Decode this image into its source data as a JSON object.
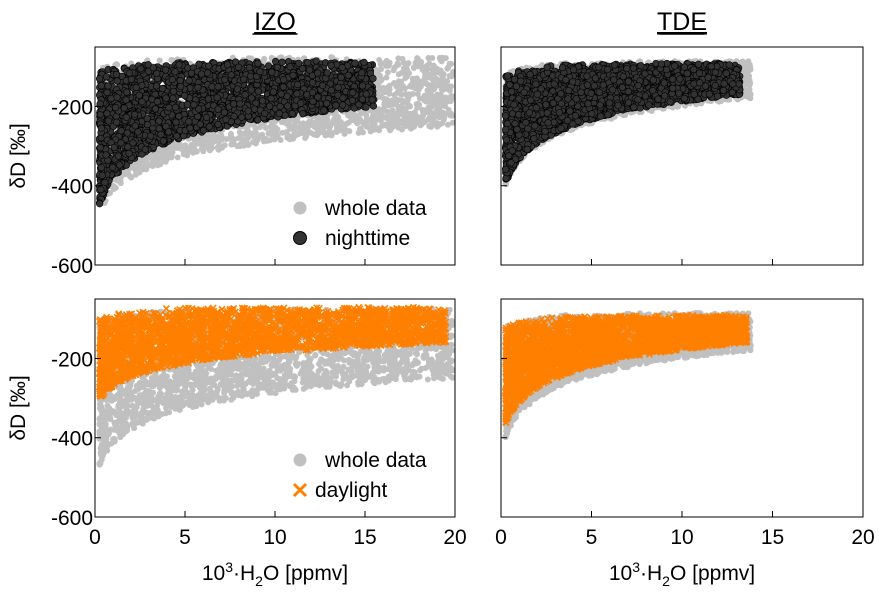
{
  "chart_data": [
    {
      "type": "scatter",
      "panel": "top-left",
      "column_title": "IZO",
      "ylabel": "δD [‰]",
      "xlabel": "",
      "xlim": [
        0,
        20
      ],
      "ylim": [
        -600,
        -50
      ],
      "xticks": [
        0,
        5,
        10,
        15,
        20
      ],
      "yticks": [
        -600,
        -400,
        -200
      ],
      "show_x_tick_labels": false,
      "show_y_tick_labels": true,
      "grid": false,
      "legend_position": "bottom-right",
      "series": [
        {
          "name": "whole data",
          "color": "#c0c0c0",
          "marker": "circle",
          "xmax": 19.9,
          "upper": -85,
          "lower_min": -535,
          "lower_knee": -290
        },
        {
          "name": "nighttime",
          "color": "#333333",
          "marker": "circle-dark",
          "xmax": 15.5,
          "upper": -95,
          "lower_min": -525,
          "lower_knee": -240
        }
      ]
    },
    {
      "type": "scatter",
      "panel": "top-right",
      "column_title": "TDE",
      "ylabel": "",
      "xlabel": "",
      "xlim": [
        0,
        20
      ],
      "ylim": [
        -600,
        -50
      ],
      "xticks": [
        0,
        5,
        10,
        15,
        20
      ],
      "yticks": [
        -600,
        -400,
        -200
      ],
      "show_x_tick_labels": false,
      "show_y_tick_labels": false,
      "grid": false,
      "legend_position": "",
      "series": [
        {
          "name": "",
          "color": "#c0c0c0",
          "marker": "circle",
          "xmax": 13.8,
          "upper": -95,
          "lower_min": -470,
          "lower_knee": -220
        },
        {
          "name": "",
          "color": "#333333",
          "marker": "circle-dark",
          "xmax": 13.2,
          "upper": -100,
          "lower_min": -470,
          "lower_knee": -210
        }
      ]
    },
    {
      "type": "scatter",
      "panel": "bottom-left",
      "column_title": "",
      "ylabel": "δD [‰]",
      "xlabel": "10³·H₂O [ppmv]",
      "xlim": [
        0,
        20
      ],
      "ylim": [
        -600,
        -50
      ],
      "xticks": [
        0,
        5,
        10,
        15,
        20
      ],
      "yticks": [
        -600,
        -400,
        -200
      ],
      "show_x_tick_labels": true,
      "show_y_tick_labels": true,
      "grid": false,
      "legend_position": "bottom-right",
      "series": [
        {
          "name": "whole data",
          "color": "#c0c0c0",
          "marker": "circle",
          "xmax": 19.9,
          "upper": -85,
          "lower_min": -535,
          "lower_knee": -290
        },
        {
          "name": "daylight",
          "color": "#ff8000",
          "marker": "x",
          "xmax": 19.5,
          "upper": -80,
          "lower_min": -345,
          "lower_knee": -200
        }
      ]
    },
    {
      "type": "scatter",
      "panel": "bottom-right",
      "column_title": "",
      "ylabel": "",
      "xlabel": "10³·H₂O [ppmv]",
      "xlim": [
        0,
        20
      ],
      "ylim": [
        -600,
        -50
      ],
      "xticks": [
        0,
        5,
        10,
        15,
        20
      ],
      "yticks": [
        -600,
        -400,
        -200
      ],
      "show_x_tick_labels": true,
      "show_y_tick_labels": false,
      "grid": false,
      "legend_position": "",
      "series": [
        {
          "name": "",
          "color": "#c0c0c0",
          "marker": "circle",
          "xmax": 13.8,
          "upper": -95,
          "lower_min": -470,
          "lower_knee": -220
        },
        {
          "name": "",
          "color": "#ff8000",
          "marker": "x",
          "xmax": 13.6,
          "upper": -100,
          "lower_min": -430,
          "lower_knee": -200
        }
      ]
    }
  ]
}
